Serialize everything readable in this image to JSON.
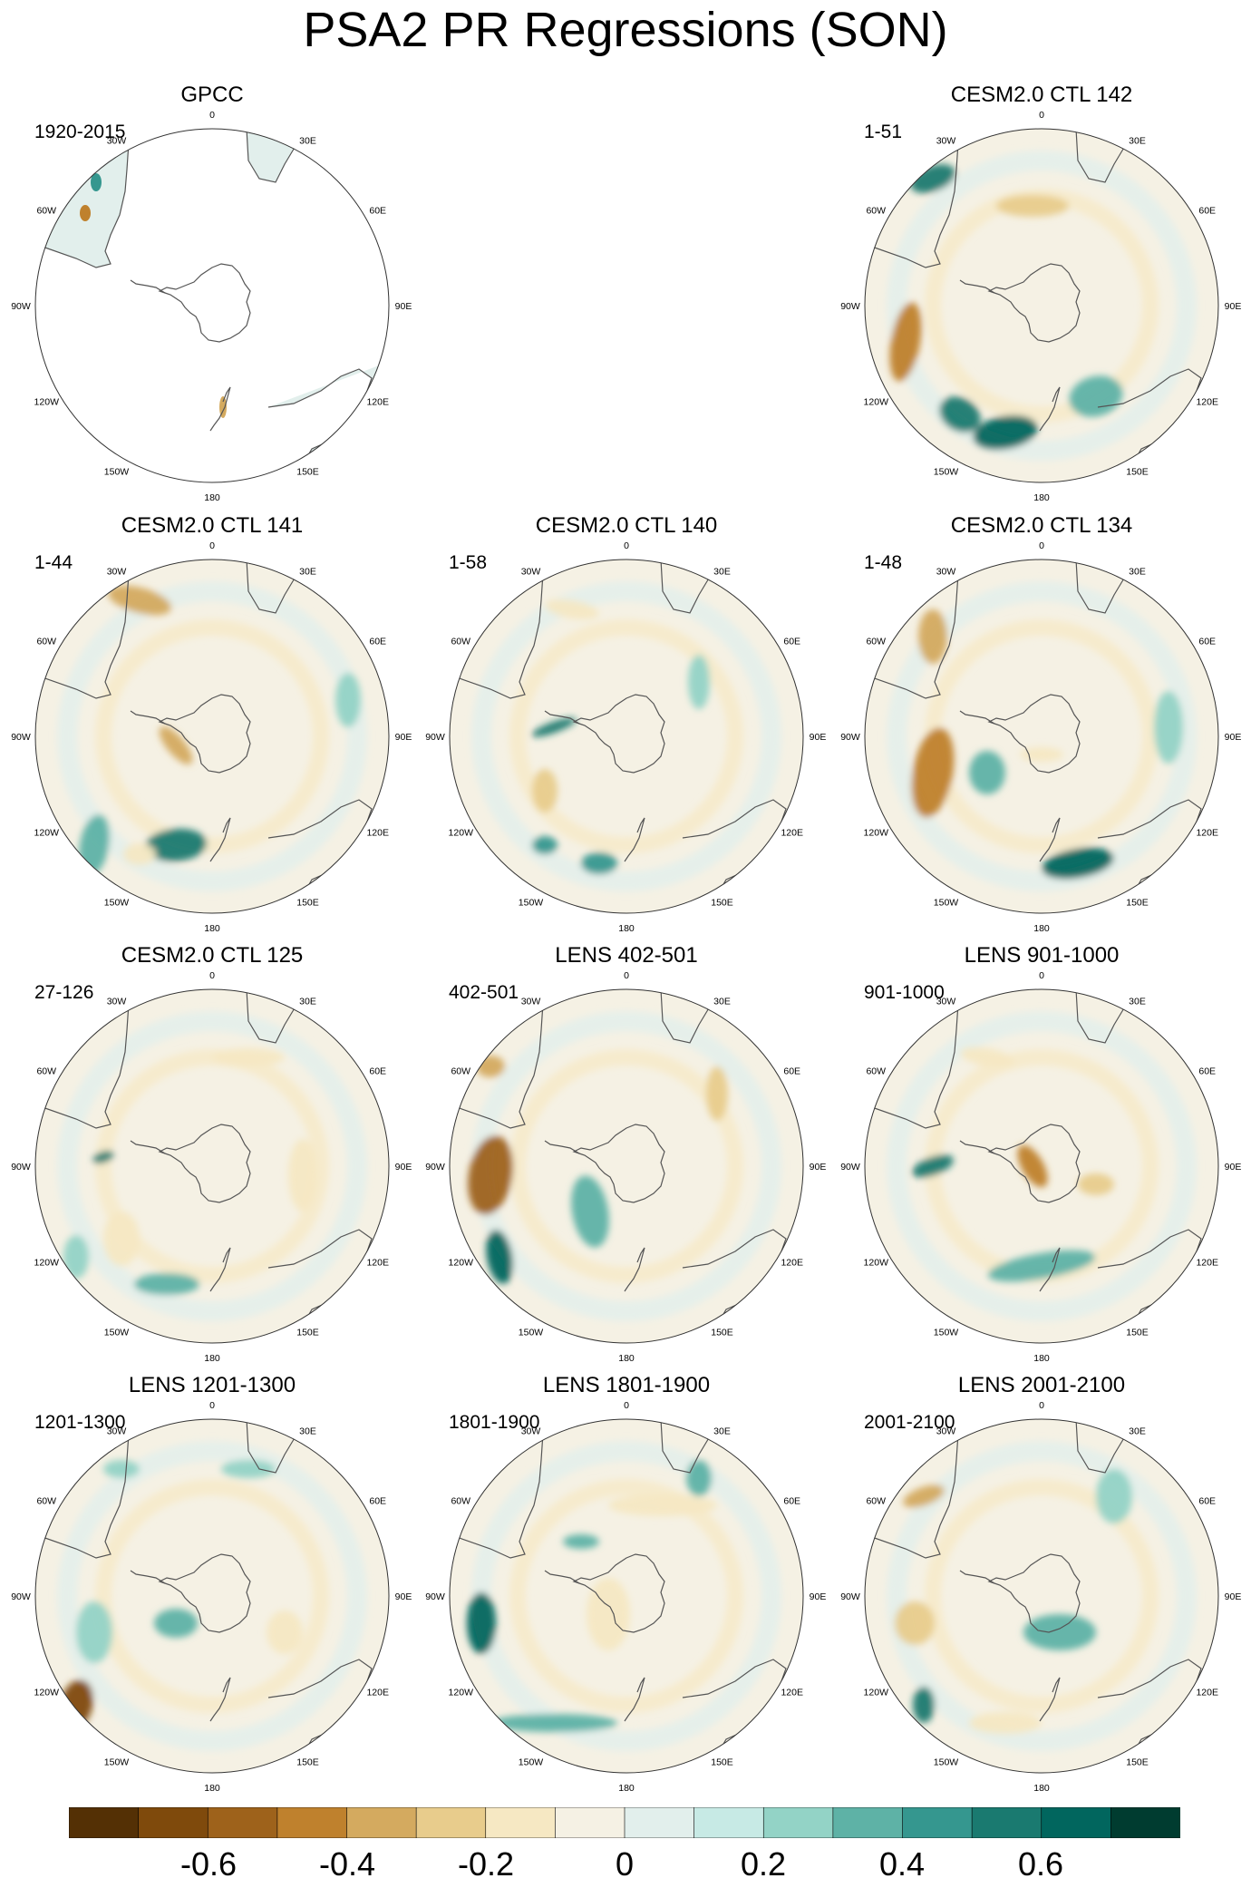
{
  "title": "PSA2 PR Regressions (SON)",
  "longitude_labels": [
    "0",
    "30E",
    "60E",
    "90E",
    "120E",
    "150E",
    "180",
    "150W",
    "120W",
    "90W",
    "60W",
    "30W"
  ],
  "colors": {
    "brown_dark": "#543005",
    "teal_dark": "#003c30",
    "neutral": "#f5f5f5",
    "coastline": "#555555"
  },
  "panels": [
    {
      "name": "GPCC",
      "period": "1920-2015",
      "data_coverage": "land only"
    },
    {
      "name": "CESM2.0 CTL 142",
      "period": "1-51"
    },
    {
      "name": "CESM2.0 CTL 141",
      "period": "1-44"
    },
    {
      "name": "CESM2.0 CTL 140",
      "period": "1-58"
    },
    {
      "name": "CESM2.0 CTL 134",
      "period": "1-48"
    },
    {
      "name": "CESM2.0 CTL 125",
      "period": "27-126"
    },
    {
      "name": "LENS 402-501",
      "period": "402-501"
    },
    {
      "name": "LENS 901-1000",
      "period": "901-1000"
    },
    {
      "name": "LENS 1201-1300",
      "period": "1201-1300"
    },
    {
      "name": "LENS 1801-1900",
      "period": "1801-1900"
    },
    {
      "name": "LENS 2001-2100",
      "period": "2001-2100"
    }
  ],
  "colorbar": {
    "colors": [
      "#543005",
      "#7f4a0c",
      "#9e621b",
      "#bf812d",
      "#d4aa5f",
      "#e8cc8c",
      "#f6e8c3",
      "#f5f1e4",
      "#e2efec",
      "#c7eae5",
      "#93d3c6",
      "#5eb2a6",
      "#35978f",
      "#1a7a70",
      "#01665e",
      "#003c30"
    ],
    "labels": [
      "-0.6",
      "-0.4",
      "-0.2",
      "0",
      "0.2",
      "0.4",
      "0.6"
    ]
  }
}
